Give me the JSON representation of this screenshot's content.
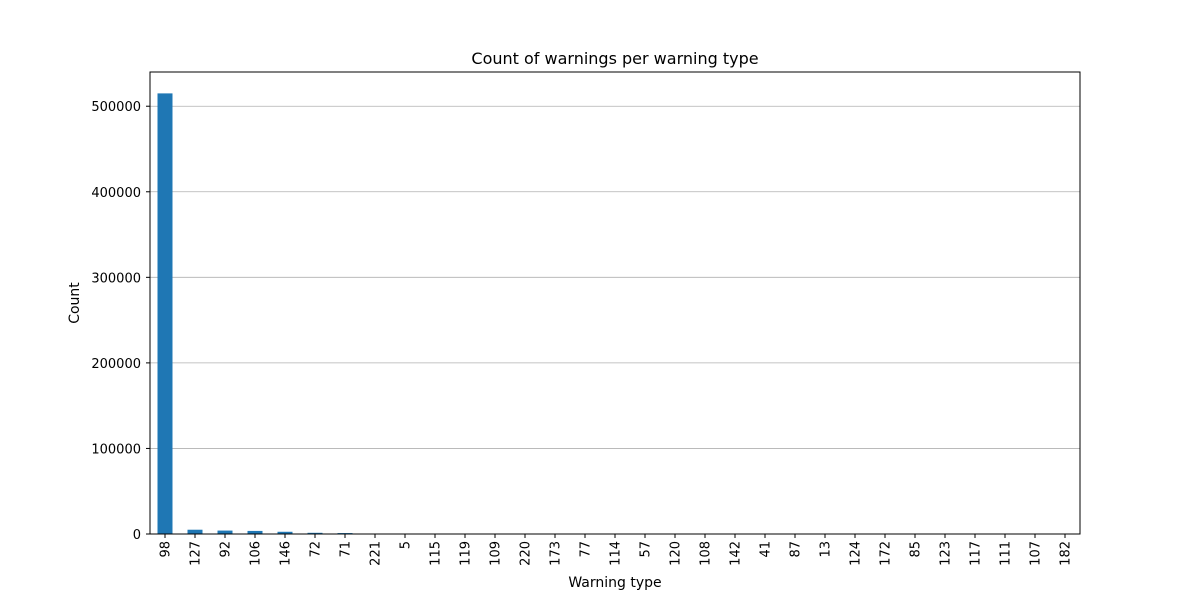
{
  "chart_data": {
    "type": "bar",
    "title": "Count of warnings per warning type",
    "xlabel": "Warning type",
    "ylabel": "Count",
    "categories": [
      "98",
      "127",
      "92",
      "106",
      "146",
      "72",
      "71",
      "221",
      "5",
      "115",
      "119",
      "109",
      "220",
      "173",
      "77",
      "114",
      "57",
      "120",
      "108",
      "142",
      "41",
      "87",
      "13",
      "124",
      "172",
      "85",
      "123",
      "117",
      "111",
      "107",
      "182"
    ],
    "values": [
      515000,
      5000,
      4000,
      3600,
      2600,
      1400,
      1100,
      300,
      250,
      200,
      180,
      160,
      140,
      120,
      100,
      90,
      80,
      70,
      60,
      50,
      45,
      40,
      35,
      30,
      25,
      20,
      18,
      15,
      12,
      10,
      8
    ],
    "yticks": [
      0,
      100000,
      200000,
      300000,
      400000,
      500000
    ],
    "ylim": [
      0,
      540000
    ],
    "grid": "horizontal",
    "bar_color": "#1f77b4"
  }
}
